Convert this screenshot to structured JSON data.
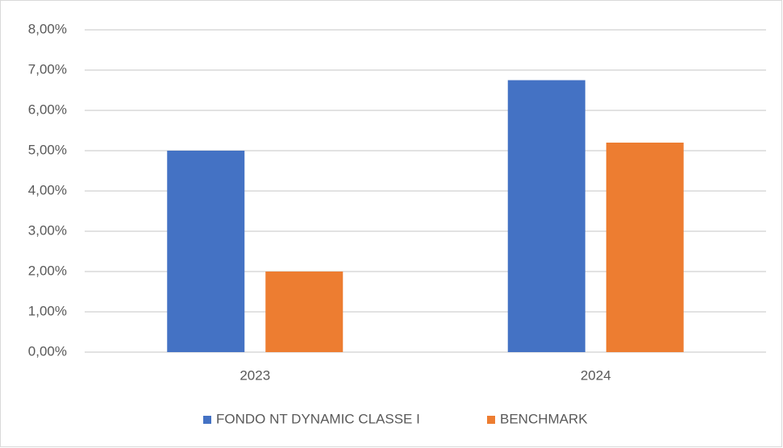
{
  "chart_data": {
    "type": "bar",
    "categories": [
      "2023",
      "2024"
    ],
    "series": [
      {
        "name": "FONDO NT DYNAMIC CLASSE I",
        "color": "#4472c4",
        "values": [
          5.0,
          6.75
        ]
      },
      {
        "name": "BENCHMARK",
        "color": "#ed7d31",
        "values": [
          2.0,
          5.2
        ]
      }
    ],
    "ylim": [
      0,
      8
    ],
    "yticks": [
      {
        "value": 0,
        "label": "0,00%"
      },
      {
        "value": 1,
        "label": "1,00%"
      },
      {
        "value": 2,
        "label": "2,00%"
      },
      {
        "value": 3,
        "label": "3,00%"
      },
      {
        "value": 4,
        "label": "4,00%"
      },
      {
        "value": 5,
        "label": "5,00%"
      },
      {
        "value": 6,
        "label": "6,00%"
      },
      {
        "value": 7,
        "label": "7,00%"
      },
      {
        "value": 8,
        "label": "8,00%"
      }
    ],
    "grid": true,
    "legend": "bottom"
  }
}
